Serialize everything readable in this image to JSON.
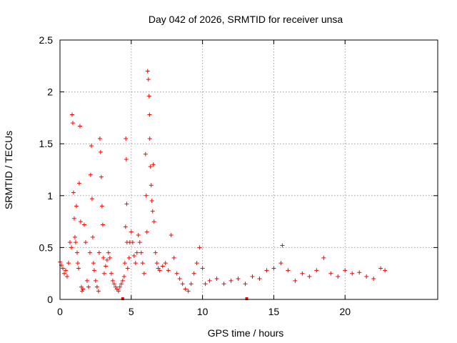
{
  "chart_data": {
    "type": "scatter",
    "title": "Day 042 of 2026, SRMTID for receiver unsa",
    "xlabel": "GPS time / hours",
    "ylabel": "SRMTID / TECUs",
    "xlim": [
      0,
      26.5
    ],
    "ylim": [
      0,
      2.5
    ],
    "xticks": [
      0,
      5,
      10,
      15,
      20
    ],
    "xtick_labels": [
      "0",
      "5",
      "10",
      "15",
      "20"
    ],
    "yticks": [
      0,
      0.5,
      1,
      1.5,
      2,
      2.5
    ],
    "ytick_labels": [
      "0",
      "0.5",
      "1",
      "1.5",
      "2",
      "2.5"
    ],
    "grid": true,
    "marker": "plus",
    "series": [
      {
        "name": "SRMTID",
        "color": "#ff0000",
        "points": [
          [
            0.0,
            0.36
          ],
          [
            0.1,
            0.33
          ],
          [
            0.2,
            0.3
          ],
          [
            0.3,
            0.25
          ],
          [
            0.4,
            0.28
          ],
          [
            0.5,
            0.22
          ],
          [
            0.6,
            0.35
          ],
          [
            0.7,
            0.55
          ],
          [
            0.8,
            0.5
          ],
          [
            0.85,
            1.78
          ],
          [
            0.9,
            1.7
          ],
          [
            0.95,
            1.03
          ],
          [
            1.0,
            0.78
          ],
          [
            1.05,
            0.6
          ],
          [
            1.1,
            0.55
          ],
          [
            1.15,
            0.9
          ],
          [
            1.2,
            0.45
          ],
          [
            1.25,
            0.35
          ],
          [
            1.3,
            0.3
          ],
          [
            1.35,
            1.12
          ],
          [
            1.4,
            1.67
          ],
          [
            1.45,
            0.75
          ],
          [
            1.5,
            0.12
          ],
          [
            1.55,
            0.08
          ],
          [
            1.6,
            0.1
          ],
          [
            1.7,
            0.72
          ],
          [
            1.8,
            0.55
          ],
          [
            1.9,
            0.18
          ],
          [
            2.0,
            0.12
          ],
          [
            2.1,
            0.45
          ],
          [
            2.15,
            1.2
          ],
          [
            2.2,
            1.48
          ],
          [
            2.25,
            0.97
          ],
          [
            2.3,
            0.6
          ],
          [
            2.35,
            0.35
          ],
          [
            2.4,
            0.28
          ],
          [
            2.5,
            0.18
          ],
          [
            2.6,
            0.12
          ],
          [
            2.7,
            0.08
          ],
          [
            2.75,
            0.45
          ],
          [
            2.8,
            1.55
          ],
          [
            2.85,
            1.42
          ],
          [
            2.9,
            1.18
          ],
          [
            2.95,
            0.9
          ],
          [
            3.0,
            0.72
          ],
          [
            3.05,
            0.4
          ],
          [
            3.1,
            0.25
          ],
          [
            3.2,
            0.32
          ],
          [
            3.3,
            0.38
          ],
          [
            3.4,
            0.45
          ],
          [
            3.5,
            0.4
          ],
          [
            3.6,
            0.25
          ],
          [
            3.7,
            0.18
          ],
          [
            3.8,
            0.15
          ],
          [
            3.9,
            0.12
          ],
          [
            4.0,
            0.1
          ],
          [
            4.1,
            0.08
          ],
          [
            4.2,
            0.12
          ],
          [
            4.3,
            0.15
          ],
          [
            4.4,
            0.18
          ],
          [
            4.5,
            0.22
          ],
          [
            4.55,
            0.35
          ],
          [
            4.6,
            0.7
          ],
          [
            4.62,
            1.55
          ],
          [
            4.65,
            1.35
          ],
          [
            4.68,
            0.92
          ],
          [
            4.7,
            0.55
          ],
          [
            4.75,
            0.3
          ],
          [
            4.85,
            0.4
          ],
          [
            4.9,
            0.55
          ],
          [
            5.0,
            0.65
          ],
          [
            5.1,
            0.55
          ],
          [
            5.2,
            0.42
          ],
          [
            5.3,
            0.35
          ],
          [
            5.4,
            0.45
          ],
          [
            5.5,
            0.62
          ],
          [
            5.6,
            0.55
          ],
          [
            5.7,
            0.45
          ],
          [
            5.8,
            0.35
          ],
          [
            5.9,
            0.25
          ],
          [
            6.0,
            1.4
          ],
          [
            6.05,
            1.0
          ],
          [
            6.1,
            0.65
          ],
          [
            6.15,
            2.2
          ],
          [
            6.2,
            2.12
          ],
          [
            6.25,
            1.96
          ],
          [
            6.28,
            1.78
          ],
          [
            6.3,
            1.55
          ],
          [
            6.35,
            1.28
          ],
          [
            6.4,
            1.1
          ],
          [
            6.45,
            0.95
          ],
          [
            6.5,
            0.85
          ],
          [
            6.55,
            1.3
          ],
          [
            6.6,
            0.75
          ],
          [
            6.7,
            0.45
          ],
          [
            6.8,
            0.35
          ],
          [
            6.9,
            0.3
          ],
          [
            7.0,
            0.28
          ],
          [
            7.2,
            0.32
          ],
          [
            7.4,
            0.35
          ],
          [
            7.6,
            0.28
          ],
          [
            7.8,
            0.62
          ],
          [
            8.0,
            0.4
          ],
          [
            8.2,
            0.25
          ],
          [
            8.4,
            0.2
          ],
          [
            8.6,
            0.15
          ],
          [
            8.8,
            0.1
          ],
          [
            9.0,
            0.08
          ],
          [
            9.2,
            0.15
          ],
          [
            9.4,
            0.25
          ],
          [
            9.6,
            0.35
          ],
          [
            9.8,
            0.5
          ],
          [
            10.0,
            0.3
          ],
          [
            10.2,
            0.15
          ],
          [
            10.5,
            0.18
          ],
          [
            11.0,
            0.2
          ],
          [
            11.5,
            0.15
          ],
          [
            12.0,
            0.18
          ],
          [
            12.5,
            0.2
          ],
          [
            13.0,
            0.15
          ],
          [
            13.5,
            0.22
          ],
          [
            14.0,
            0.2
          ],
          [
            14.5,
            0.28
          ],
          [
            15.0,
            0.3
          ],
          [
            15.5,
            0.35
          ],
          [
            15.6,
            0.52
          ],
          [
            16.0,
            0.28
          ],
          [
            16.5,
            0.18
          ],
          [
            17.0,
            0.25
          ],
          [
            17.5,
            0.22
          ],
          [
            18.0,
            0.28
          ],
          [
            18.5,
            0.4
          ],
          [
            19.0,
            0.25
          ],
          [
            19.5,
            0.22
          ],
          [
            20.0,
            0.28
          ],
          [
            20.5,
            0.25
          ],
          [
            21.0,
            0.26
          ],
          [
            21.5,
            0.22
          ],
          [
            22.0,
            0.2
          ],
          [
            22.5,
            0.3
          ],
          [
            22.8,
            0.28
          ]
        ],
        "markers_on_axis": [
          4.4,
          13.1
        ]
      }
    ]
  }
}
